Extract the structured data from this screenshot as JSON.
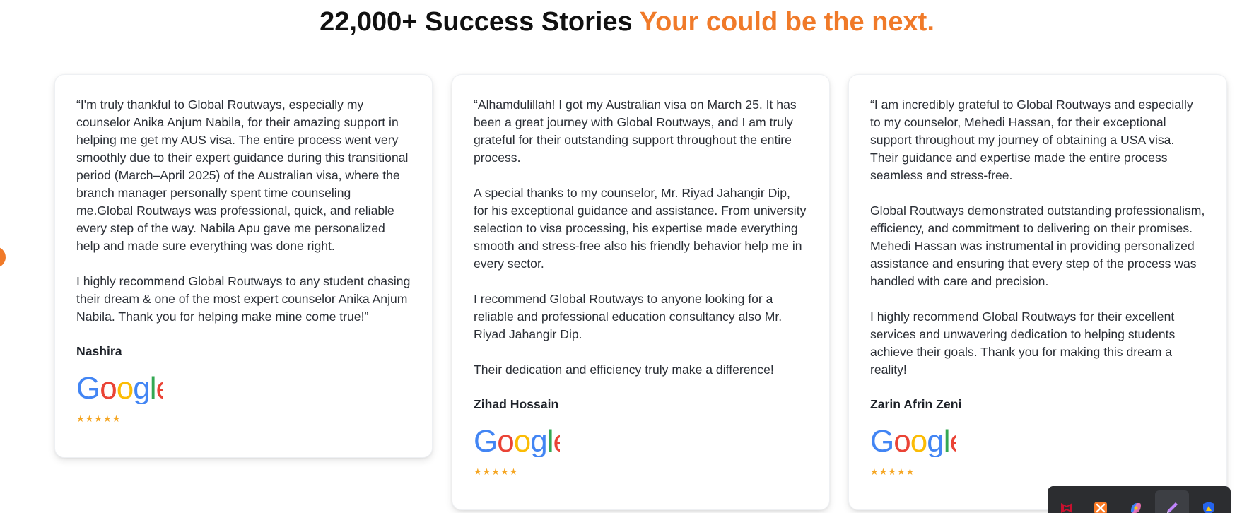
{
  "header": {
    "title_main": "22,000+ Success Stories",
    "title_accent": "Your could be the next."
  },
  "testimonials": [
    {
      "paragraphs": [
        "“I'm truly thankful to Global Routways, especially my counselor Anika Anjum Nabila, for their amazing support in helping me get my AUS visa. The entire process went very smoothly due to their expert guidance during this transitional period (March–April 2025) of the Australian visa, where the branch manager personally spent time counseling me.Global Routways was professional, quick, and reliable every step of the way. Nabila Apu gave me personalized help and made sure everything was done right.",
        "I highly recommend Global Routways to any student chasing their dream & one of the most expert counselor Anika Anjum Nabila. Thank you for helping make mine come true!”"
      ],
      "author": "Nashira",
      "source": "Google",
      "rating": 5,
      "stars": "★★★★★"
    },
    {
      "paragraphs": [
        "“Alhamdulillah! I got my Australian visa on March 25. It has been a great journey with Global Routways, and I am truly grateful for their outstanding support throughout the entire process.",
        "A special thanks to my counselor, Mr. Riyad Jahangir Dip, for his exceptional guidance and assistance. From university selection to visa processing, his expertise made everything smooth and stress-free also his friendly behavior help me in every sector.",
        "I recommend Global Routways to anyone looking for a reliable and professional education consultancy also Mr. Riyad Jahangir Dip.",
        "Their dedication and efficiency truly make a difference!"
      ],
      "author": "Zihad Hossain",
      "source": "Google",
      "rating": 5,
      "stars": "★★★★★"
    },
    {
      "paragraphs": [
        "“I am incredibly grateful to Global Routways and especially to my counselor, Mehedi Hassan, for their exceptional support throughout my journey of obtaining a USA visa. Their guidance and expertise made the entire process seamless and stress-free.",
        "Global Routways demonstrated outstanding professionalism, efficiency, and commitment to delivering on their promises. Mehedi Hassan was instrumental in providing personalized assistance and ensuring that every step of the process was handled with care and precision.",
        "I highly recommend Global Routways for their excellent services and unwavering dedication to helping students achieve their goals. Thank you for making this dream a reality!"
      ],
      "author": "Zarin Afrin Zeni",
      "source": "Google",
      "rating": 5,
      "stars": "★★★★★"
    }
  ],
  "colors": {
    "accent": "#f07a29",
    "star": "#f5a623",
    "google_blue": "#4285F4",
    "google_red": "#EA4335",
    "google_yellow": "#FBBC05",
    "google_green": "#34A853"
  },
  "taskbar": {
    "icons": [
      "mcafee-icon",
      "xampp-icon",
      "copilot-icon",
      "pen-icon",
      "security-shield-icon"
    ]
  }
}
